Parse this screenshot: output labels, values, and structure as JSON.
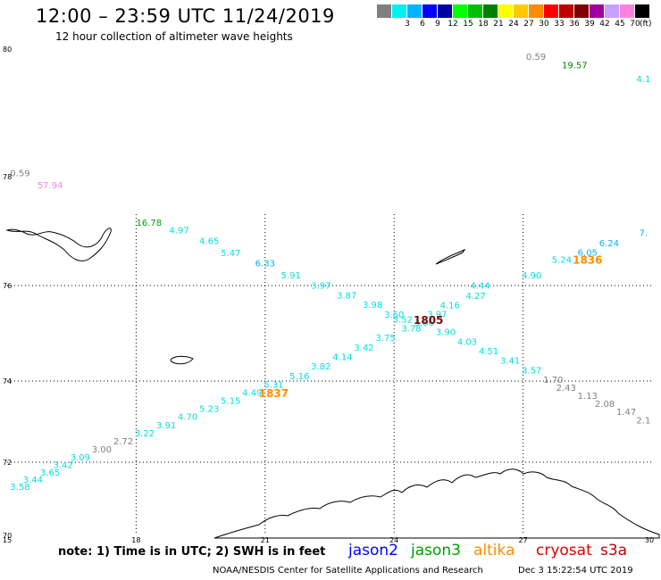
{
  "header": {
    "title": "12:00 – 23:59 UTC 11/24/2019",
    "subtitle": "12 hour collection of altimeter wave heights"
  },
  "legend": {
    "unit": "(ft)",
    "swatches": [
      {
        "color": "#808080",
        "label": ""
      },
      {
        "color": "#00f0f0",
        "label": "3"
      },
      {
        "color": "#00b4ff",
        "label": "6"
      },
      {
        "color": "#0000ff",
        "label": "9"
      },
      {
        "color": "#0000a0",
        "label": "12"
      },
      {
        "color": "#00ff00",
        "label": "15"
      },
      {
        "color": "#00c000",
        "label": "18"
      },
      {
        "color": "#008000",
        "label": "21"
      },
      {
        "color": "#ffff00",
        "label": "24"
      },
      {
        "color": "#ffc800",
        "label": "27"
      },
      {
        "color": "#ff8c00",
        "label": "30"
      },
      {
        "color": "#ff0000",
        "label": "33"
      },
      {
        "color": "#c00000",
        "label": "36"
      },
      {
        "color": "#800000",
        "label": "39"
      },
      {
        "color": "#a000a0",
        "label": "42"
      },
      {
        "color": "#c8a0ff",
        "label": "45"
      },
      {
        "color": "#ff80e0",
        "label": "70"
      },
      {
        "color": "#000000",
        "label": ""
      }
    ]
  },
  "axes": {
    "lat_labels": [
      "80",
      "78",
      "76",
      "74",
      "72",
      "70"
    ],
    "lon_labels": [
      "15",
      "18",
      "21",
      "24",
      "27",
      "30"
    ]
  },
  "observations": [
    {
      "lat": 79.83,
      "lon": 27.3,
      "v": "0.59",
      "color": "#808080"
    },
    {
      "lat": 79.7,
      "lon": 28.2,
      "v": "19.57",
      "color": "#008000"
    },
    {
      "lat": 79.48,
      "lon": 29.8,
      "v": "4.1",
      "color": "#00e0e0"
    },
    {
      "lat": 78.01,
      "lon": 15.3,
      "v": "0.59",
      "color": "#808080"
    },
    {
      "lat": 77.79,
      "lon": 16.0,
      "v": "57.94",
      "color": "#ff80e0"
    },
    {
      "lat": 77.1,
      "lon": 18.3,
      "v": "16.78",
      "color": "#00a000"
    },
    {
      "lat": 76.96,
      "lon": 19.0,
      "v": "4.97",
      "color": "#00e0e0"
    },
    {
      "lat": 76.76,
      "lon": 19.7,
      "v": "4.65",
      "color": "#00e0e0"
    },
    {
      "lat": 76.54,
      "lon": 20.2,
      "v": "5.47",
      "color": "#00e0e0"
    },
    {
      "lat": 76.35,
      "lon": 21.0,
      "v": "6.33",
      "color": "#00b4ff"
    },
    {
      "lat": 76.13,
      "lon": 21.6,
      "v": "5.91",
      "color": "#00e0e0"
    },
    {
      "lat": 75.93,
      "lon": 22.3,
      "v": "3.97",
      "color": "#00e0e0"
    },
    {
      "lat": 75.73,
      "lon": 22.9,
      "v": "3.87",
      "color": "#00e0e0"
    },
    {
      "lat": 75.53,
      "lon": 23.5,
      "v": "3.98",
      "color": "#00e0e0"
    },
    {
      "lat": 75.33,
      "lon": 24.0,
      "v": "3.60",
      "color": "#00e0e0"
    },
    {
      "lat": 75.22,
      "lon": 24.2,
      "v": "3.52",
      "color": "#00e0e0"
    },
    {
      "lat": 75.16,
      "lon": 24.7,
      "v": "3.86",
      "color": "#00e0e0"
    },
    {
      "lat": 74.96,
      "lon": 25.2,
      "v": "3.90",
      "color": "#00e0e0"
    },
    {
      "lat": 74.76,
      "lon": 25.7,
      "v": "4.03",
      "color": "#00e0e0"
    },
    {
      "lat": 74.56,
      "lon": 26.2,
      "v": "4.51",
      "color": "#00e0e0"
    },
    {
      "lat": 74.36,
      "lon": 26.7,
      "v": "3.41",
      "color": "#00e0e0"
    },
    {
      "lat": 74.16,
      "lon": 27.2,
      "v": "3.57",
      "color": "#00e0e0"
    },
    {
      "lat": 73.96,
      "lon": 27.7,
      "v": "1.70",
      "color": "#808080"
    },
    {
      "lat": 73.76,
      "lon": 28.0,
      "v": "2.43",
      "color": "#808080"
    },
    {
      "lat": 73.56,
      "lon": 28.5,
      "v": "1.13",
      "color": "#808080"
    },
    {
      "lat": 73.36,
      "lon": 28.9,
      "v": "2.08",
      "color": "#808080"
    },
    {
      "lat": 73.16,
      "lon": 29.4,
      "v": "1.47",
      "color": "#808080"
    },
    {
      "lat": 72.96,
      "lon": 29.8,
      "v": "2.1",
      "color": "#808080"
    },
    {
      "lat": 76.91,
      "lon": 29.8,
      "v": "7.",
      "color": "#00b4ff"
    },
    {
      "lat": 76.72,
      "lon": 29.0,
      "v": "6.24",
      "color": "#00b4ff"
    },
    {
      "lat": 76.55,
      "lon": 28.5,
      "v": "6.05",
      "color": "#00b4ff"
    },
    {
      "lat": 76.42,
      "lon": 27.9,
      "v": "5.24",
      "color": "#00e0e0"
    },
    {
      "lat": 76.13,
      "lon": 27.2,
      "v": "4.90",
      "color": "#00e0e0"
    },
    {
      "lat": 75.93,
      "lon": 26.0,
      "v": "4.44",
      "color": "#00e0e0"
    },
    {
      "lat": 75.72,
      "lon": 25.9,
      "v": "4.27",
      "color": "#00e0e0"
    },
    {
      "lat": 75.52,
      "lon": 25.3,
      "v": "4.16",
      "color": "#00e0e0"
    },
    {
      "lat": 75.34,
      "lon": 25.0,
      "v": "3.97",
      "color": "#00e0e0"
    },
    {
      "lat": 75.04,
      "lon": 24.4,
      "v": "3.78",
      "color": "#00e0e0"
    },
    {
      "lat": 74.84,
      "lon": 23.8,
      "v": "3.75",
      "color": "#00e0e0"
    },
    {
      "lat": 74.64,
      "lon": 23.3,
      "v": "3.42",
      "color": "#00e0e0"
    },
    {
      "lat": 74.44,
      "lon": 22.8,
      "v": "4.14",
      "color": "#00e0e0"
    },
    {
      "lat": 74.24,
      "lon": 22.3,
      "v": "3.82",
      "color": "#00e0e0"
    },
    {
      "lat": 74.04,
      "lon": 21.8,
      "v": "5.16",
      "color": "#00e0e0"
    },
    {
      "lat": 73.84,
      "lon": 21.2,
      "v": "5.31",
      "color": "#00e0e0"
    },
    {
      "lat": 73.64,
      "lon": 20.7,
      "v": "4.49",
      "color": "#00e0e0"
    },
    {
      "lat": 73.44,
      "lon": 20.2,
      "v": "5.15",
      "color": "#00e0e0"
    },
    {
      "lat": 73.24,
      "lon": 19.7,
      "v": "5.23",
      "color": "#00e0e0"
    },
    {
      "lat": 73.04,
      "lon": 19.2,
      "v": "4.70",
      "color": "#00e0e0"
    },
    {
      "lat": 72.84,
      "lon": 18.7,
      "v": "3.91",
      "color": "#00e0e0"
    },
    {
      "lat": 72.64,
      "lon": 18.2,
      "v": "3.22",
      "color": "#00e0e0"
    },
    {
      "lat": 72.44,
      "lon": 17.7,
      "v": "2.72",
      "color": "#808080"
    },
    {
      "lat": 72.24,
      "lon": 17.2,
      "v": "3.00",
      "color": "#808080"
    },
    {
      "lat": 72.04,
      "lon": 16.7,
      "v": "3.09",
      "color": "#00e0e0"
    },
    {
      "lat": 71.84,
      "lon": 16.3,
      "v": "3.42",
      "color": "#00e0e0"
    },
    {
      "lat": 71.64,
      "lon": 16.0,
      "v": "3.65",
      "color": "#00e0e0"
    },
    {
      "lat": 71.44,
      "lon": 15.6,
      "v": "3.44",
      "color": "#00e0e0"
    },
    {
      "lat": 71.24,
      "lon": 15.3,
      "v": "3.58",
      "color": "#00e0e0"
    }
  ],
  "overpass_times": [
    {
      "lat": 76.4,
      "lon": 28.5,
      "v": "1836",
      "color": "#ff8c00"
    },
    {
      "lat": 75.2,
      "lon": 24.8,
      "v": "1805",
      "color": "#800000"
    },
    {
      "lat": 73.6,
      "lon": 21.2,
      "v": "1837",
      "color": "#ff8c00"
    }
  ],
  "footer": {
    "note": "note: 1) Time is in UTC; 2) SWH is in feet",
    "sat_jason2": "jason2",
    "sat_jason3": "jason3",
    "sat_altika": "altika",
    "sat_cryosat": "cryosat",
    "sat_s3a": "s3a",
    "credit": "NOAA/NESDIS Center for Satellite Applications and Research",
    "stamp": "Dec  3 15:22:54 UTC 2019"
  },
  "colors": {
    "jason2": "#0000ff",
    "jason3": "#00a000",
    "altika": "#ff8c00",
    "cryosat": "#e00000",
    "s3a": "#c00000"
  }
}
